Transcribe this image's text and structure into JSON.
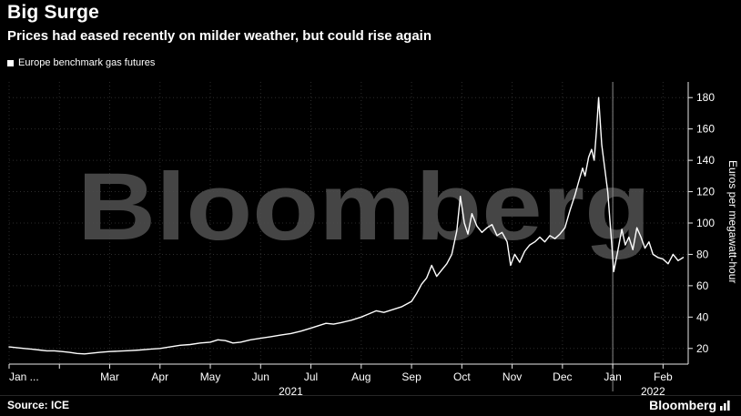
{
  "header": {
    "title": "Big Surge",
    "subtitle": "Prices had eased recently on milder weather, but could rise again"
  },
  "legend": {
    "label": "Europe benchmark gas futures",
    "marker_color": "#ffffff"
  },
  "watermark": "Bloomberg",
  "footer": {
    "source": "Source: ICE",
    "brand": "Bloomberg"
  },
  "colors": {
    "background": "#000000",
    "series": "#ffffff",
    "grid": "#2d2d2d",
    "axis": "#e8e8e8",
    "tick_text": "#ffffff",
    "watermark": "#4d4d4d",
    "year_separator": "#8a8a8a"
  },
  "chart_data": {
    "type": "line",
    "title": "Big Surge",
    "subtitle": "Prices had eased recently on milder weather, but could rise again",
    "ylabel": "Euros per megawatt-hour",
    "ylim": [
      10,
      190
    ],
    "yticks": [
      20,
      40,
      60,
      80,
      100,
      120,
      140,
      160,
      180
    ],
    "xlim": [
      0,
      13.5
    ],
    "x_unit": "months since Jan 2021",
    "x_ticks": [
      {
        "x": 0,
        "label": "Jan ..."
      },
      {
        "x": 2,
        "label": "Mar"
      },
      {
        "x": 3,
        "label": "Apr"
      },
      {
        "x": 4,
        "label": "May"
      },
      {
        "x": 5,
        "label": "Jun"
      },
      {
        "x": 6,
        "label": "Jul"
      },
      {
        "x": 7,
        "label": "Aug"
      },
      {
        "x": 8,
        "label": "Sep"
      },
      {
        "x": 9,
        "label": "Oct"
      },
      {
        "x": 10,
        "label": "Nov"
      },
      {
        "x": 11,
        "label": "Dec"
      },
      {
        "x": 12,
        "label": "Jan"
      },
      {
        "x": 13,
        "label": "Feb"
      }
    ],
    "year_labels": [
      {
        "x": 5.6,
        "label": "2021"
      },
      {
        "x": 12.8,
        "label": "2022"
      }
    ],
    "year_separator_x": 12,
    "grid": "dotted",
    "legend_position": "top-left",
    "series": [
      {
        "name": "Europe benchmark gas futures",
        "color": "#ffffff",
        "points": [
          [
            0,
            21
          ],
          [
            0.15,
            20.5
          ],
          [
            0.3,
            20
          ],
          [
            0.45,
            19.5
          ],
          [
            0.6,
            19
          ],
          [
            0.75,
            18.5
          ],
          [
            0.9,
            18.5
          ],
          [
            1.05,
            18
          ],
          [
            1.2,
            17.5
          ],
          [
            1.35,
            16.8
          ],
          [
            1.5,
            16.5
          ],
          [
            1.65,
            17
          ],
          [
            1.8,
            17.5
          ],
          [
            2,
            18
          ],
          [
            2.2,
            18.3
          ],
          [
            2.4,
            18.6
          ],
          [
            2.6,
            19
          ],
          [
            2.8,
            19.5
          ],
          [
            3,
            20
          ],
          [
            3.2,
            21
          ],
          [
            3.4,
            22
          ],
          [
            3.6,
            22.5
          ],
          [
            3.8,
            23.5
          ],
          [
            4,
            24
          ],
          [
            4.15,
            25.5
          ],
          [
            4.3,
            25
          ],
          [
            4.45,
            23.5
          ],
          [
            4.6,
            24
          ],
          [
            4.8,
            25.5
          ],
          [
            5,
            26.5
          ],
          [
            5.2,
            27.5
          ],
          [
            5.4,
            28.5
          ],
          [
            5.6,
            29.5
          ],
          [
            5.8,
            31
          ],
          [
            6,
            33
          ],
          [
            6.15,
            34.5
          ],
          [
            6.3,
            36
          ],
          [
            6.45,
            35.5
          ],
          [
            6.6,
            36.5
          ],
          [
            6.8,
            38
          ],
          [
            7,
            40
          ],
          [
            7.15,
            42
          ],
          [
            7.3,
            44
          ],
          [
            7.45,
            43
          ],
          [
            7.6,
            44.5
          ],
          [
            7.8,
            46.5
          ],
          [
            8,
            50
          ],
          [
            8.1,
            55
          ],
          [
            8.2,
            61
          ],
          [
            8.3,
            65
          ],
          [
            8.4,
            73
          ],
          [
            8.5,
            66
          ],
          [
            8.6,
            70
          ],
          [
            8.7,
            74
          ],
          [
            8.8,
            80
          ],
          [
            8.9,
            95
          ],
          [
            8.97,
            117
          ],
          [
            9.05,
            100
          ],
          [
            9.12,
            93
          ],
          [
            9.2,
            106
          ],
          [
            9.3,
            98
          ],
          [
            9.4,
            94
          ],
          [
            9.5,
            97
          ],
          [
            9.6,
            99
          ],
          [
            9.7,
            92
          ],
          [
            9.8,
            94
          ],
          [
            9.9,
            88
          ],
          [
            9.97,
            73
          ],
          [
            10.05,
            80
          ],
          [
            10.15,
            75
          ],
          [
            10.25,
            82
          ],
          [
            10.35,
            86
          ],
          [
            10.45,
            88
          ],
          [
            10.55,
            91
          ],
          [
            10.65,
            88
          ],
          [
            10.75,
            92
          ],
          [
            10.85,
            90
          ],
          [
            10.95,
            93
          ],
          [
            11.05,
            97
          ],
          [
            11.15,
            108
          ],
          [
            11.25,
            118
          ],
          [
            11.32,
            126
          ],
          [
            11.4,
            135
          ],
          [
            11.45,
            130
          ],
          [
            11.52,
            142
          ],
          [
            11.58,
            147
          ],
          [
            11.63,
            140
          ],
          [
            11.68,
            160
          ],
          [
            11.72,
            180
          ],
          [
            11.78,
            150
          ],
          [
            11.84,
            135
          ],
          [
            11.9,
            120
          ],
          [
            11.96,
            95
          ],
          [
            12.02,
            69
          ],
          [
            12.1,
            82
          ],
          [
            12.18,
            96
          ],
          [
            12.25,
            86
          ],
          [
            12.32,
            91
          ],
          [
            12.4,
            83
          ],
          [
            12.48,
            97
          ],
          [
            12.56,
            91
          ],
          [
            12.64,
            84
          ],
          [
            12.72,
            88
          ],
          [
            12.8,
            80
          ],
          [
            12.9,
            78
          ],
          [
            13,
            77
          ],
          [
            13.1,
            74
          ],
          [
            13.2,
            80
          ],
          [
            13.3,
            76
          ],
          [
            13.4,
            78
          ]
        ]
      }
    ]
  }
}
